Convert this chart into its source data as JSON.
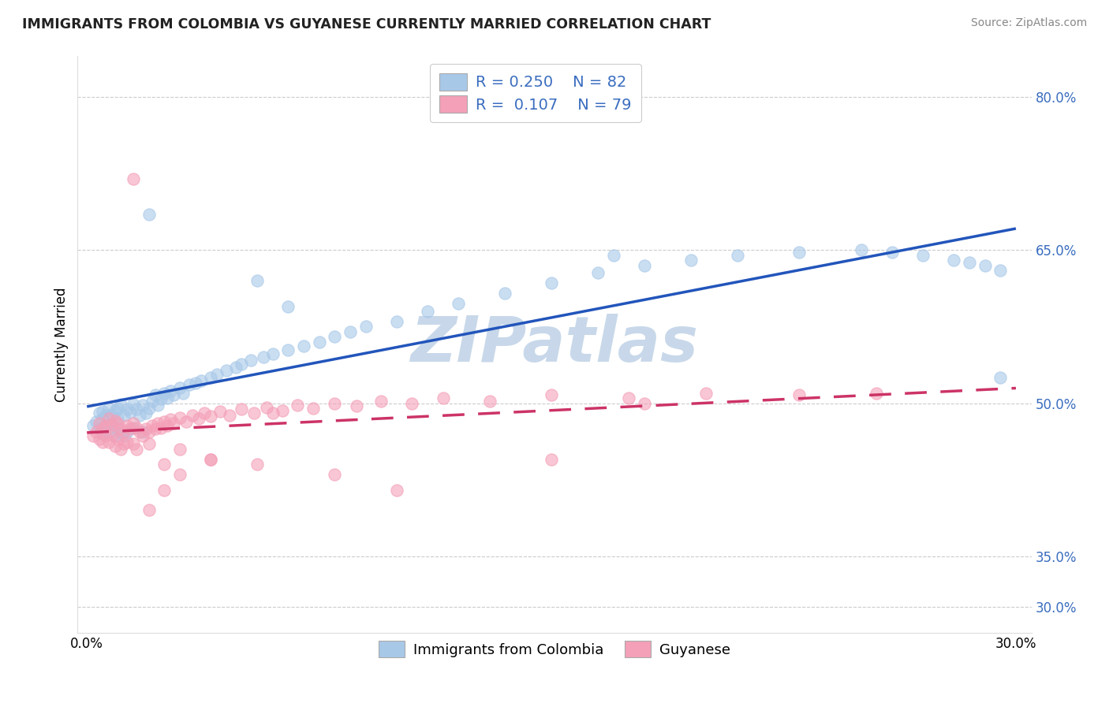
{
  "title": "IMMIGRANTS FROM COLOMBIA VS GUYANESE CURRENTLY MARRIED CORRELATION CHART",
  "source": "Source: ZipAtlas.com",
  "ylabel": "Currently Married",
  "r_colombia": 0.25,
  "n_colombia": 82,
  "r_guyanese": 0.107,
  "n_guyanese": 79,
  "xlim": [
    -0.003,
    0.305
  ],
  "ylim": [
    0.275,
    0.84
  ],
  "ytick_labels": [
    "30.0%",
    "35.0%",
    "50.0%",
    "65.0%",
    "80.0%"
  ],
  "ytick_values": [
    0.3,
    0.35,
    0.5,
    0.65,
    0.8
  ],
  "color_colombia": "#a8c8e8",
  "color_guyanese": "#f4a0b8",
  "line_color_colombia": "#2255bb",
  "line_color_guyanese": "#cc3366",
  "background_color": "#ffffff",
  "watermark_color": "#c8d8ea",
  "legend_label_colombia": "Immigrants from Colombia",
  "legend_label_guyanese": "Guyanese",
  "legend_r_color": "#3a6dbf",
  "ytick_color": "#3a6dbf",
  "grid_color": "#cccccc",
  "colombia_x": [
    0.002,
    0.003,
    0.004,
    0.004,
    0.005,
    0.005,
    0.005,
    0.006,
    0.006,
    0.007,
    0.007,
    0.008,
    0.008,
    0.009,
    0.009,
    0.01,
    0.01,
    0.01,
    0.011,
    0.011,
    0.012,
    0.012,
    0.013,
    0.013,
    0.014,
    0.015,
    0.015,
    0.016,
    0.017,
    0.018,
    0.018,
    0.019,
    0.02,
    0.021,
    0.022,
    0.023,
    0.024,
    0.025,
    0.026,
    0.027,
    0.028,
    0.03,
    0.031,
    0.033,
    0.035,
    0.037,
    0.04,
    0.042,
    0.045,
    0.048,
    0.05,
    0.053,
    0.057,
    0.06,
    0.065,
    0.07,
    0.075,
    0.08,
    0.085,
    0.09,
    0.1,
    0.11,
    0.12,
    0.135,
    0.15,
    0.165,
    0.18,
    0.195,
    0.21,
    0.23,
    0.25,
    0.26,
    0.27,
    0.28,
    0.285,
    0.29,
    0.295,
    0.295,
    0.02,
    0.055,
    0.065,
    0.17
  ],
  "colombia_y": [
    0.478,
    0.482,
    0.49,
    0.475,
    0.485,
    0.492,
    0.47,
    0.488,
    0.478,
    0.495,
    0.472,
    0.489,
    0.479,
    0.493,
    0.468,
    0.495,
    0.485,
    0.475,
    0.499,
    0.471,
    0.488,
    0.468,
    0.494,
    0.472,
    0.491,
    0.499,
    0.476,
    0.494,
    0.488,
    0.498,
    0.472,
    0.49,
    0.495,
    0.502,
    0.508,
    0.498,
    0.504,
    0.51,
    0.505,
    0.512,
    0.508,
    0.515,
    0.51,
    0.518,
    0.52,
    0.522,
    0.525,
    0.528,
    0.532,
    0.535,
    0.538,
    0.542,
    0.545,
    0.548,
    0.552,
    0.556,
    0.56,
    0.565,
    0.57,
    0.575,
    0.58,
    0.59,
    0.598,
    0.608,
    0.618,
    0.628,
    0.635,
    0.64,
    0.645,
    0.648,
    0.65,
    0.648,
    0.645,
    0.64,
    0.638,
    0.635,
    0.63,
    0.525,
    0.685,
    0.62,
    0.595,
    0.645
  ],
  "guyanese_x": [
    0.002,
    0.003,
    0.004,
    0.004,
    0.005,
    0.005,
    0.006,
    0.006,
    0.007,
    0.007,
    0.008,
    0.008,
    0.009,
    0.009,
    0.01,
    0.01,
    0.011,
    0.011,
    0.012,
    0.012,
    0.013,
    0.013,
    0.014,
    0.015,
    0.015,
    0.016,
    0.016,
    0.017,
    0.018,
    0.019,
    0.02,
    0.021,
    0.022,
    0.023,
    0.024,
    0.025,
    0.026,
    0.027,
    0.028,
    0.03,
    0.032,
    0.034,
    0.036,
    0.038,
    0.04,
    0.043,
    0.046,
    0.05,
    0.054,
    0.058,
    0.063,
    0.068,
    0.073,
    0.08,
    0.087,
    0.095,
    0.105,
    0.115,
    0.13,
    0.15,
    0.175,
    0.2,
    0.23,
    0.255,
    0.015,
    0.02,
    0.025,
    0.03,
    0.04,
    0.055,
    0.06,
    0.08,
    0.1,
    0.15,
    0.18,
    0.02,
    0.025,
    0.03,
    0.04
  ],
  "guyanese_y": [
    0.468,
    0.472,
    0.48,
    0.465,
    0.475,
    0.462,
    0.478,
    0.468,
    0.485,
    0.462,
    0.479,
    0.469,
    0.483,
    0.458,
    0.48,
    0.465,
    0.475,
    0.455,
    0.472,
    0.46,
    0.478,
    0.462,
    0.475,
    0.48,
    0.46,
    0.476,
    0.455,
    0.472,
    0.468,
    0.475,
    0.472,
    0.478,
    0.475,
    0.48,
    0.476,
    0.482,
    0.478,
    0.484,
    0.48,
    0.486,
    0.482,
    0.488,
    0.485,
    0.49,
    0.487,
    0.492,
    0.488,
    0.494,
    0.49,
    0.496,
    0.493,
    0.498,
    0.495,
    0.5,
    0.497,
    0.502,
    0.5,
    0.505,
    0.502,
    0.508,
    0.505,
    0.51,
    0.508,
    0.51,
    0.72,
    0.395,
    0.415,
    0.43,
    0.445,
    0.44,
    0.49,
    0.43,
    0.415,
    0.445,
    0.5,
    0.46,
    0.44,
    0.455,
    0.445
  ]
}
